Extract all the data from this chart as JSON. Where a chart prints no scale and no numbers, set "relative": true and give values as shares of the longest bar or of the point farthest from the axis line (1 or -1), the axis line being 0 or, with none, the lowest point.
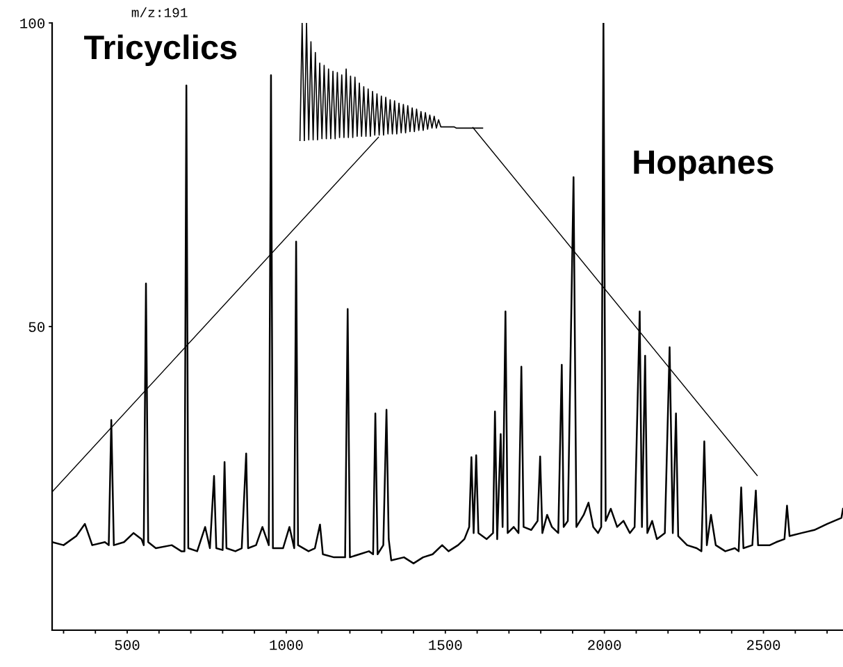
{
  "chart_data": [
    {
      "type": "line",
      "annotations": [
        "m/z:191",
        "Tricyclics",
        "Hopanes"
      ],
      "xlim": [
        264,
        2750
      ],
      "ylim": [
        0,
        100
      ],
      "xticks": [
        {
          "value": 300,
          "label": null
        },
        {
          "value": 400,
          "label": null
        },
        500,
        {
          "value": 600,
          "label": null
        },
        {
          "value": 700,
          "label": null
        },
        {
          "value": 800,
          "label": null
        },
        {
          "value": 900,
          "label": null
        },
        1000,
        {
          "value": 1100,
          "label": null
        },
        {
          "value": 1200,
          "label": null
        },
        {
          "value": 1300,
          "label": null
        },
        {
          "value": 1400,
          "label": null
        },
        1500,
        {
          "value": 1600,
          "label": null
        },
        {
          "value": 1700,
          "label": null
        },
        {
          "value": 1800,
          "label": null
        },
        {
          "value": 1900,
          "label": null
        },
        2000,
        {
          "value": 2100,
          "label": null
        },
        {
          "value": 2200,
          "label": null
        },
        {
          "value": 2300,
          "label": null
        },
        {
          "value": 2400,
          "label": null
        },
        2500,
        {
          "value": 2600,
          "label": null
        },
        {
          "value": 2700,
          "label": null
        }
      ],
      "yticks": [
        50,
        100
      ],
      "marker": "none",
      "line_style": "solid",
      "legend": false,
      "grid": false,
      "series": [
        {
          "color": "#000000",
          "x": [
            264,
            300,
            340,
            367,
            390,
            430,
            442,
            450,
            458,
            490,
            520,
            545,
            552,
            559,
            566,
            590,
            640,
            670,
            680,
            686,
            692,
            720,
            745,
            760,
            773,
            780,
            800,
            806,
            812,
            840,
            860,
            874,
            880,
            905,
            925,
            945,
            952,
            958,
            990,
            1010,
            1025,
            1031,
            1037,
            1070,
            1090,
            1106,
            1115,
            1150,
            1185,
            1193,
            1200,
            1230,
            1260,
            1273,
            1280,
            1287,
            1305,
            1315,
            1322,
            1330,
            1370,
            1400,
            1430,
            1460,
            1490,
            1510,
            1540,
            1560,
            1575,
            1582,
            1589,
            1597,
            1604,
            1630,
            1650,
            1656,
            1663,
            1674,
            1680,
            1689,
            1696,
            1715,
            1730,
            1739,
            1746,
            1770,
            1790,
            1798,
            1805,
            1820,
            1835,
            1855,
            1866,
            1872,
            1885,
            1903,
            1912,
            1935,
            1950,
            1965,
            1980,
            1990,
            1997,
            2004,
            2020,
            2040,
            2060,
            2080,
            2095,
            2111,
            2118,
            2128,
            2135,
            2150,
            2165,
            2190,
            2205,
            2215,
            2225,
            2232,
            2260,
            2290,
            2305,
            2314,
            2322,
            2335,
            2350,
            2380,
            2410,
            2422,
            2430,
            2437,
            2465,
            2476,
            2483,
            2520,
            2540,
            2566,
            2574,
            2582,
            2620,
            2660,
            2700,
            2745,
            2750
          ],
          "values": [
            14.5,
            14,
            15.5,
            17.5,
            14,
            14.5,
            14,
            34.6,
            14,
            14.5,
            16,
            15,
            14,
            57.1,
            14.5,
            13.5,
            14,
            13,
            13,
            89.7,
            13.5,
            13,
            17,
            13.5,
            25.4,
            13.5,
            13.2,
            27.7,
            13.5,
            13,
            13.5,
            29.1,
            13.5,
            14,
            17,
            14,
            91.4,
            13.5,
            13.5,
            17,
            13.5,
            64,
            14,
            13,
            13.5,
            17.4,
            12.5,
            12,
            12,
            52.9,
            12,
            12.5,
            13,
            12.5,
            35.7,
            12.5,
            14,
            36.3,
            15,
            11.5,
            12,
            11,
            12,
            12.5,
            14,
            13,
            14,
            15,
            17,
            28.5,
            16,
            28.8,
            16,
            15,
            16,
            36,
            15,
            32.3,
            17,
            52.5,
            16,
            17,
            16,
            43.4,
            17,
            16.5,
            18,
            28.6,
            16,
            19,
            17,
            16,
            43.7,
            17,
            18,
            74.6,
            17,
            19,
            21,
            17,
            16,
            17,
            100,
            18,
            20,
            17,
            18,
            16,
            17,
            52.5,
            17,
            45.2,
            16,
            18,
            15,
            16,
            46.6,
            16,
            35.7,
            15.5,
            14,
            13.5,
            13,
            31.1,
            14,
            19,
            14,
            13,
            13.5,
            13,
            23.5,
            13.5,
            14,
            23,
            14,
            14,
            14.5,
            15,
            20.5,
            15.5,
            16,
            16.5,
            17.5,
            18.5,
            20
          ]
        }
      ]
    },
    {
      "type": "line",
      "relative": true,
      "marker": "none",
      "line_style": "solid",
      "categories": [
        null,
        null,
        null,
        null,
        null,
        null,
        null,
        null,
        null,
        null,
        null,
        null,
        null,
        null,
        null,
        null,
        null,
        null,
        null,
        null,
        null,
        null,
        null,
        null,
        null,
        null,
        null,
        null,
        null,
        null,
        null,
        null,
        null,
        null,
        null,
        null,
        null,
        null,
        null,
        null,
        null,
        null,
        null,
        null,
        null,
        null,
        null,
        null,
        null,
        null,
        null,
        null,
        null,
        null,
        null,
        null,
        null,
        null,
        null,
        null,
        null,
        null,
        null,
        null,
        null,
        null,
        null,
        null,
        null,
        null,
        null,
        null,
        null,
        null,
        null,
        null,
        null,
        null,
        null,
        null,
        null,
        null,
        null,
        null
      ],
      "series": [
        {
          "color": "#000000",
          "values": [
            0,
            1.0,
            0,
            1.0,
            0.01,
            0.84,
            0.01,
            0.75,
            0.01,
            0.66,
            0.02,
            0.64,
            0.02,
            0.61,
            0.02,
            0.59,
            0.02,
            0.58,
            0.03,
            0.56,
            0.03,
            0.61,
            0.03,
            0.55,
            0.03,
            0.54,
            0.04,
            0.49,
            0.04,
            0.46,
            0.04,
            0.44,
            0.04,
            0.42,
            0.05,
            0.4,
            0.05,
            0.38,
            0.05,
            0.37,
            0.06,
            0.35,
            0.06,
            0.34,
            0.06,
            0.32,
            0.07,
            0.31,
            0.07,
            0.3,
            0.08,
            0.28,
            0.08,
            0.27,
            0.09,
            0.25,
            0.09,
            0.24,
            0.1,
            0.22,
            0.11,
            0.21,
            0.11,
            0.18,
            0.12,
            0.12,
            0.12,
            0.12,
            0.12,
            0.12,
            0.12,
            0.11,
            0.11,
            0.11,
            0.11,
            0.11,
            0.11,
            0.11,
            0.11,
            0.11,
            0.11,
            0.11,
            0.11,
            0.11
          ]
        }
      ]
    }
  ]
}
